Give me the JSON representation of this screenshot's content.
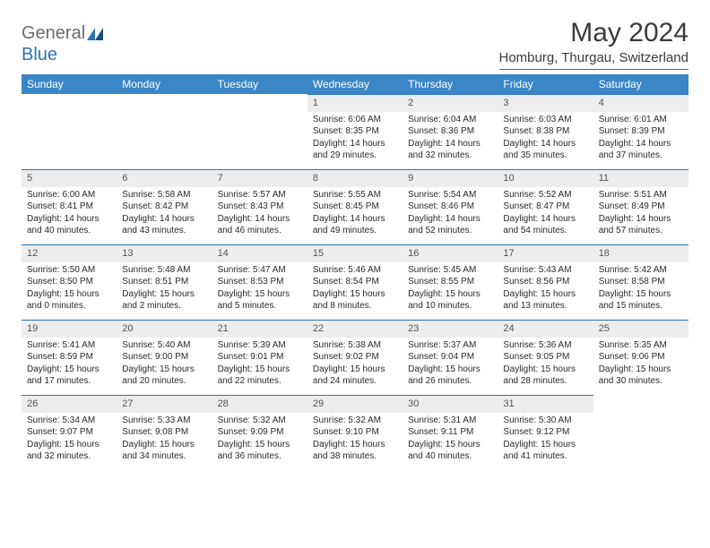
{
  "logo": {
    "text1": "General",
    "text2": "Blue"
  },
  "title": "May 2024",
  "location": "Homburg, Thurgau, Switzerland",
  "colors": {
    "header_bg": "#3b86c7",
    "accent_line": "#2c72b8",
    "daynum_bg": "#ededed",
    "text": "#2a2a2a",
    "title_text": "#3a3a3a"
  },
  "weekdays": [
    "Sunday",
    "Monday",
    "Tuesday",
    "Wednesday",
    "Thursday",
    "Friday",
    "Saturday"
  ],
  "weeks": [
    [
      null,
      null,
      null,
      {
        "n": "1",
        "sr": "6:06 AM",
        "ss": "8:35 PM",
        "dl": "14 hours and 29 minutes."
      },
      {
        "n": "2",
        "sr": "6:04 AM",
        "ss": "8:36 PM",
        "dl": "14 hours and 32 minutes."
      },
      {
        "n": "3",
        "sr": "6:03 AM",
        "ss": "8:38 PM",
        "dl": "14 hours and 35 minutes."
      },
      {
        "n": "4",
        "sr": "6:01 AM",
        "ss": "8:39 PM",
        "dl": "14 hours and 37 minutes."
      }
    ],
    [
      {
        "n": "5",
        "sr": "6:00 AM",
        "ss": "8:41 PM",
        "dl": "14 hours and 40 minutes."
      },
      {
        "n": "6",
        "sr": "5:58 AM",
        "ss": "8:42 PM",
        "dl": "14 hours and 43 minutes."
      },
      {
        "n": "7",
        "sr": "5:57 AM",
        "ss": "8:43 PM",
        "dl": "14 hours and 46 minutes."
      },
      {
        "n": "8",
        "sr": "5:55 AM",
        "ss": "8:45 PM",
        "dl": "14 hours and 49 minutes."
      },
      {
        "n": "9",
        "sr": "5:54 AM",
        "ss": "8:46 PM",
        "dl": "14 hours and 52 minutes."
      },
      {
        "n": "10",
        "sr": "5:52 AM",
        "ss": "8:47 PM",
        "dl": "14 hours and 54 minutes."
      },
      {
        "n": "11",
        "sr": "5:51 AM",
        "ss": "8:49 PM",
        "dl": "14 hours and 57 minutes."
      }
    ],
    [
      {
        "n": "12",
        "sr": "5:50 AM",
        "ss": "8:50 PM",
        "dl": "15 hours and 0 minutes."
      },
      {
        "n": "13",
        "sr": "5:48 AM",
        "ss": "8:51 PM",
        "dl": "15 hours and 2 minutes."
      },
      {
        "n": "14",
        "sr": "5:47 AM",
        "ss": "8:53 PM",
        "dl": "15 hours and 5 minutes."
      },
      {
        "n": "15",
        "sr": "5:46 AM",
        "ss": "8:54 PM",
        "dl": "15 hours and 8 minutes."
      },
      {
        "n": "16",
        "sr": "5:45 AM",
        "ss": "8:55 PM",
        "dl": "15 hours and 10 minutes."
      },
      {
        "n": "17",
        "sr": "5:43 AM",
        "ss": "8:56 PM",
        "dl": "15 hours and 13 minutes."
      },
      {
        "n": "18",
        "sr": "5:42 AM",
        "ss": "8:58 PM",
        "dl": "15 hours and 15 minutes."
      }
    ],
    [
      {
        "n": "19",
        "sr": "5:41 AM",
        "ss": "8:59 PM",
        "dl": "15 hours and 17 minutes."
      },
      {
        "n": "20",
        "sr": "5:40 AM",
        "ss": "9:00 PM",
        "dl": "15 hours and 20 minutes."
      },
      {
        "n": "21",
        "sr": "5:39 AM",
        "ss": "9:01 PM",
        "dl": "15 hours and 22 minutes."
      },
      {
        "n": "22",
        "sr": "5:38 AM",
        "ss": "9:02 PM",
        "dl": "15 hours and 24 minutes."
      },
      {
        "n": "23",
        "sr": "5:37 AM",
        "ss": "9:04 PM",
        "dl": "15 hours and 26 minutes."
      },
      {
        "n": "24",
        "sr": "5:36 AM",
        "ss": "9:05 PM",
        "dl": "15 hours and 28 minutes."
      },
      {
        "n": "25",
        "sr": "5:35 AM",
        "ss": "9:06 PM",
        "dl": "15 hours and 30 minutes."
      }
    ],
    [
      {
        "n": "26",
        "sr": "5:34 AM",
        "ss": "9:07 PM",
        "dl": "15 hours and 32 minutes."
      },
      {
        "n": "27",
        "sr": "5:33 AM",
        "ss": "9:08 PM",
        "dl": "15 hours and 34 minutes."
      },
      {
        "n": "28",
        "sr": "5:32 AM",
        "ss": "9:09 PM",
        "dl": "15 hours and 36 minutes."
      },
      {
        "n": "29",
        "sr": "5:32 AM",
        "ss": "9:10 PM",
        "dl": "15 hours and 38 minutes."
      },
      {
        "n": "30",
        "sr": "5:31 AM",
        "ss": "9:11 PM",
        "dl": "15 hours and 40 minutes."
      },
      {
        "n": "31",
        "sr": "5:30 AM",
        "ss": "9:12 PM",
        "dl": "15 hours and 41 minutes."
      },
      null
    ]
  ],
  "labels": {
    "sunrise": "Sunrise:",
    "sunset": "Sunset:",
    "daylight": "Daylight:"
  }
}
